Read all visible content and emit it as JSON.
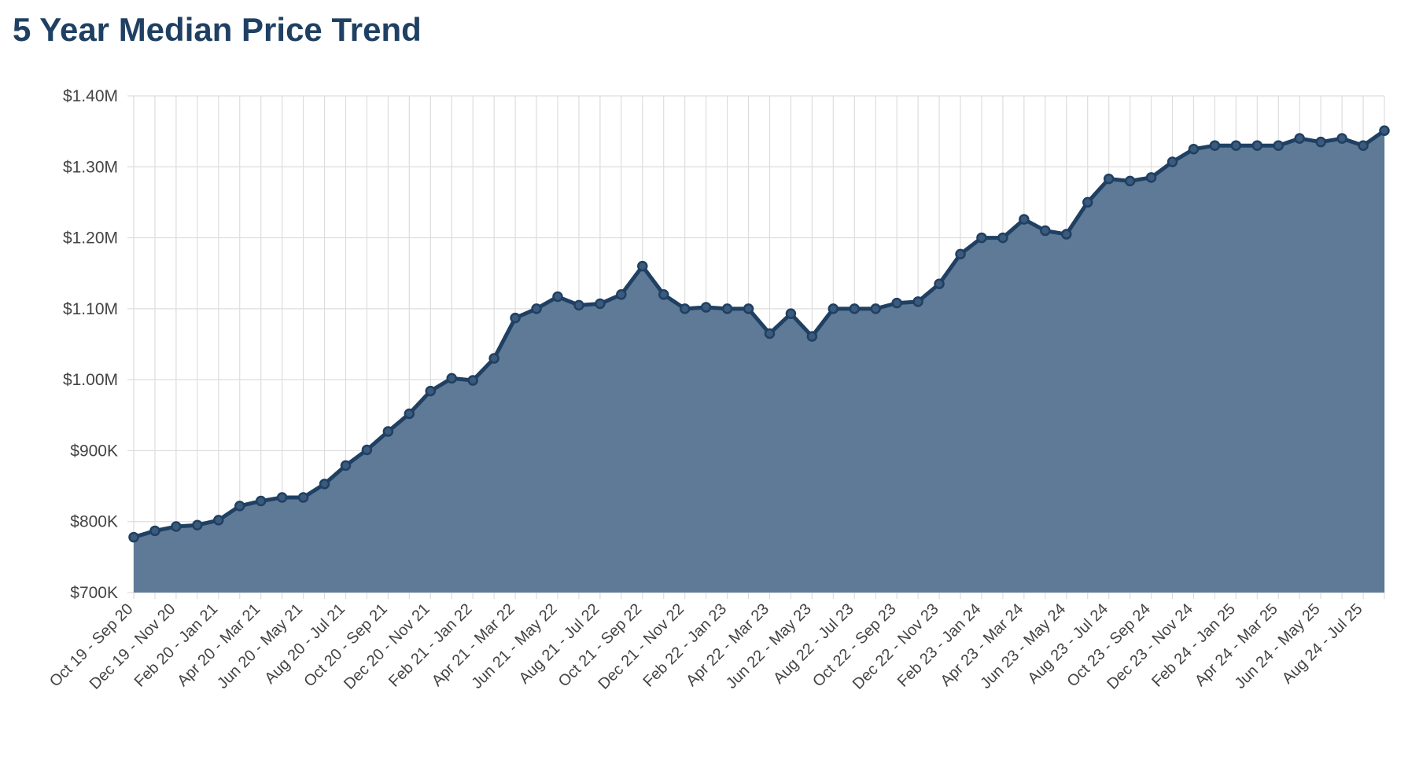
{
  "chart_data": {
    "type": "area",
    "title": "5 Year Median Price Trend",
    "xlabel": "",
    "ylabel": "",
    "ylim": [
      700000,
      1400000
    ],
    "y_ticks": [
      {
        "value": 700000,
        "label": "$700K"
      },
      {
        "value": 800000,
        "label": "$800K"
      },
      {
        "value": 900000,
        "label": "$900K"
      },
      {
        "value": 1000000,
        "label": "$1.00M"
      },
      {
        "value": 1100000,
        "label": "$1.10M"
      },
      {
        "value": 1200000,
        "label": "$1.20M"
      },
      {
        "value": 1300000,
        "label": "$1.30M"
      },
      {
        "value": 1400000,
        "label": "$1.40M"
      }
    ],
    "x_tick_labels": [
      "Oct 19 - Sep 20",
      "Dec 19 - Nov 20",
      "Feb 20 - Jan 21",
      "Apr 20 - Mar 21",
      "Jun 20 - May 21",
      "Aug 20 - Jul 21",
      "Oct 20 - Sep 21",
      "Dec 20 - Nov 21",
      "Feb 21 - Jan 22",
      "Apr 21 - Mar 22",
      "Jun 21 - May 22",
      "Aug 21 - Jul 22",
      "Oct 21 - Sep 22",
      "Dec 21 - Nov 22",
      "Feb 22 - Jan 23",
      "Apr 22 - Mar 23",
      "Jun 22 - May 23",
      "Aug 22 - Jul 23",
      "Oct 22 - Sep 23",
      "Dec 22 - Nov 23",
      "Feb 23 - Jan 24",
      "Apr 23 - Mar 24",
      "Jun 23 - May 24",
      "Aug 23 - Jul 24",
      "Oct 23 - Sep 24",
      "Dec 23 - Nov 24",
      "Feb 24 - Jan 25",
      "Apr 24 - Mar 25",
      "Jun 24 - May 25",
      "Aug 24 - Jul 25"
    ],
    "tick_every_n_points": 2,
    "values": [
      778000,
      787000,
      793000,
      795000,
      802000,
      822000,
      829000,
      834000,
      834000,
      853000,
      879000,
      901000,
      927000,
      952000,
      984000,
      1002000,
      999000,
      1030000,
      1087000,
      1100000,
      1117000,
      1105000,
      1107000,
      1120000,
      1160000,
      1120000,
      1100000,
      1102000,
      1100000,
      1100000,
      1065000,
      1093000,
      1061000,
      1100000,
      1100000,
      1100000,
      1108000,
      1110000,
      1135000,
      1177000,
      1200000,
      1200000,
      1226000,
      1210000,
      1205000,
      1250000,
      1283000,
      1280000,
      1285000,
      1307000,
      1325000,
      1330000,
      1330000,
      1330000,
      1330000,
      1340000,
      1335000,
      1340000,
      1330000,
      1351000
    ],
    "grid": true,
    "legend": "none",
    "colors": {
      "line": "#1f4063",
      "fill": "#5f7a96",
      "point": "#3c5a7c",
      "grid": "#dddddd",
      "title": "#1f4063",
      "text": "#444444"
    }
  }
}
